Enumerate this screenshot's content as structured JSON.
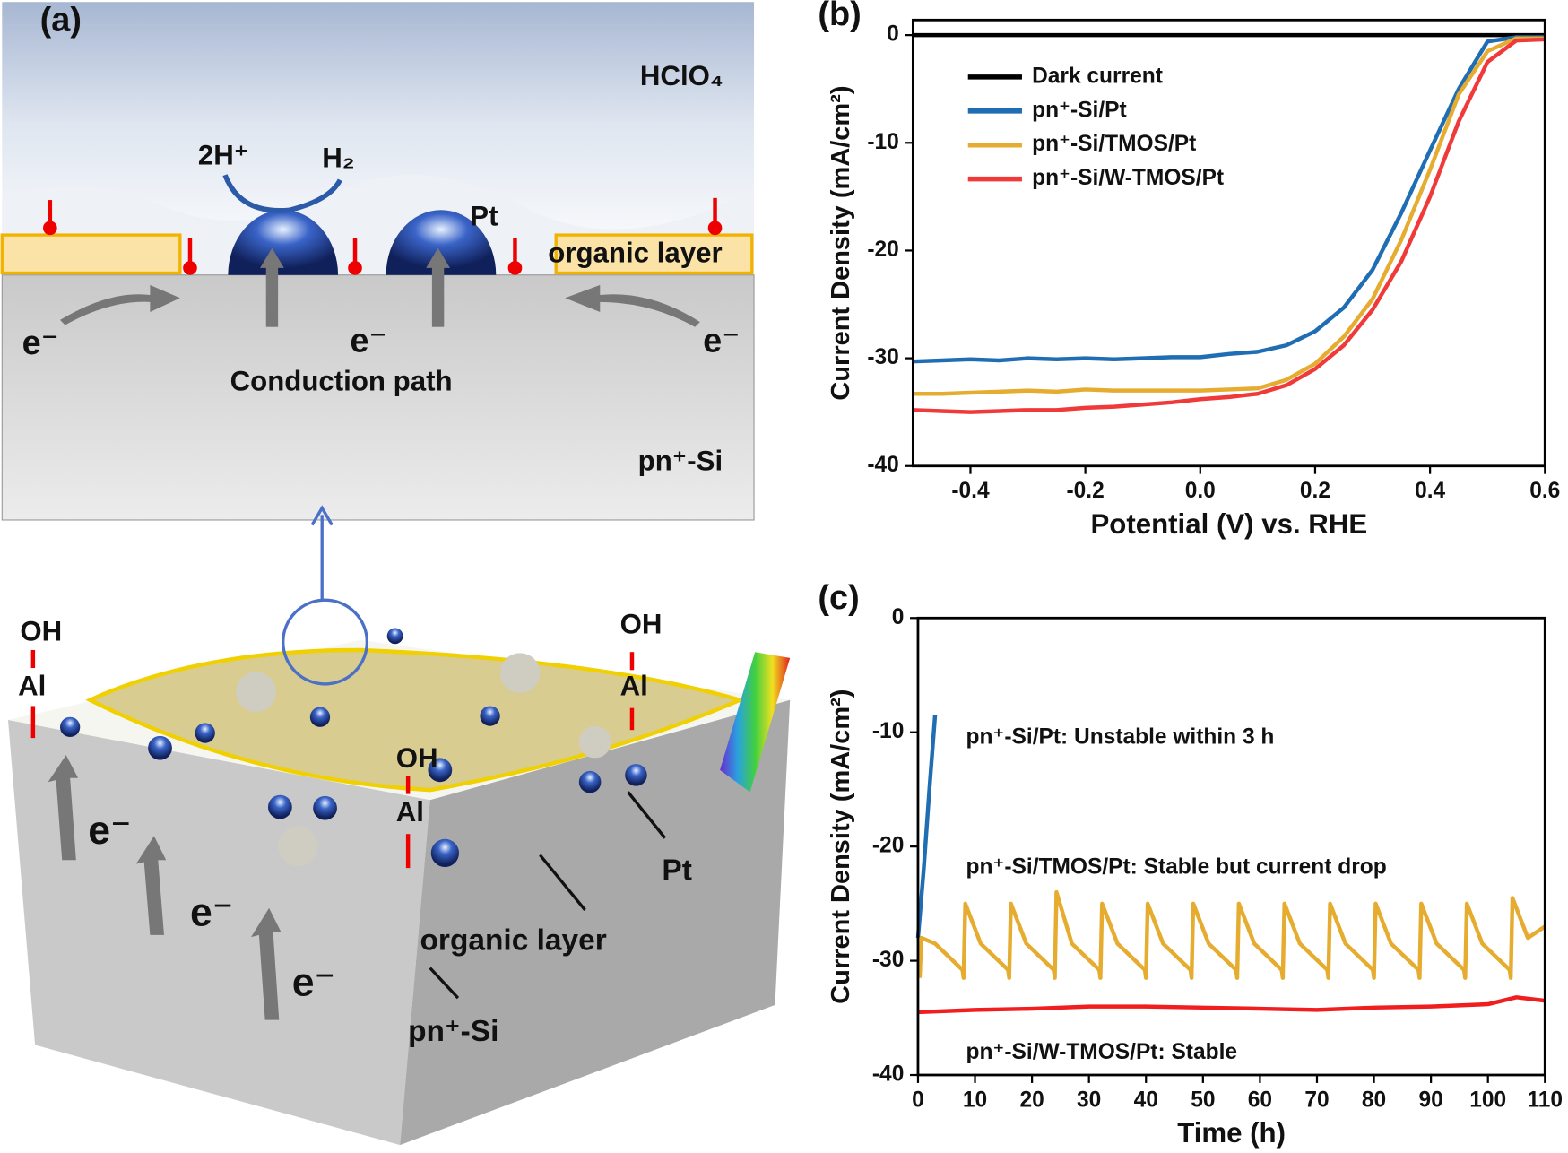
{
  "diagram": {
    "panel_label": "(a)",
    "top_labels": [
      "HClO₄",
      "2H⁺",
      "H₂",
      "Pt",
      "organic layer",
      "e⁻",
      "e⁻",
      "e⁻",
      "Conduction path",
      "pn⁺-Si"
    ],
    "bottom_labels": [
      "OH",
      "Al",
      "OH",
      "Al",
      "OH",
      "Al",
      "e⁻",
      "e⁻",
      "e⁻",
      "Pt",
      "organic layer",
      "pn⁺-Si"
    ]
  },
  "chart_data": [
    {
      "type": "line",
      "panel_label": "(b)",
      "xlabel": "Potential (V) vs. RHE",
      "ylabel": "Current Density (mA/cm²)",
      "xlim": [
        -0.5,
        0.6
      ],
      "ylim": [
        -40,
        1.4
      ],
      "xticks": [
        -0.4,
        -0.2,
        {
          "value": 0,
          "label": "0.0"
        },
        0.2,
        0.4,
        0.6
      ],
      "yticks": [
        0,
        -10,
        -20,
        -30,
        -40
      ],
      "legend": "upper left",
      "x": [
        -0.5,
        -0.45,
        -0.4,
        -0.35,
        -0.3,
        -0.25,
        -0.2,
        -0.15,
        -0.1,
        -0.05,
        0,
        0.05,
        0.1,
        0.15,
        0.2,
        0.25,
        0.3,
        0.35,
        0.4,
        0.45,
        0.5,
        0.55,
        0.6
      ],
      "series": [
        {
          "name": "Dark current",
          "color": "#000000",
          "values": [
            0,
            0,
            0,
            0,
            0,
            0,
            0,
            0,
            0,
            0,
            0,
            0,
            0,
            0,
            0,
            0,
            0,
            0,
            0,
            0,
            0,
            0,
            0
          ]
        },
        {
          "name": "pn⁺-Si/Pt",
          "color": "#1f6db3",
          "values": [
            -30.3,
            -30.2,
            -30.1,
            -30.2,
            -30.0,
            -30.1,
            -30.0,
            -30.1,
            -30.0,
            -29.9,
            -29.9,
            -29.6,
            -29.4,
            -28.8,
            -27.5,
            -25.3,
            -21.8,
            -16.5,
            -10.7,
            -5.0,
            -0.6,
            -0.2,
            -0.2
          ]
        },
        {
          "name": "pn⁺-Si/TMOS/Pt",
          "color": "#e6ac30",
          "values": [
            -33.3,
            -33.3,
            -33.2,
            -33.1,
            -33.0,
            -33.1,
            -32.9,
            -33.0,
            -33.0,
            -33.0,
            -33.0,
            -32.9,
            -32.8,
            -32.0,
            -30.5,
            -28.0,
            -24.5,
            -19.0,
            -12.5,
            -5.5,
            -1.5,
            -0.3,
            -0.3
          ]
        },
        {
          "name": "pn⁺-Si/W-TMOS/Pt",
          "color": "#f03a3a",
          "values": [
            -34.8,
            -34.9,
            -35.0,
            -34.9,
            -34.8,
            -34.8,
            -34.6,
            -34.5,
            -34.3,
            -34.1,
            -33.8,
            -33.6,
            -33.3,
            -32.5,
            -31.0,
            -28.8,
            -25.5,
            -21.0,
            -15.0,
            -8.0,
            -2.5,
            -0.5,
            -0.4
          ]
        }
      ]
    },
    {
      "type": "line",
      "panel_label": "(c)",
      "xlabel": "Time (h)",
      "ylabel": "Current Density (mA/cm²)",
      "xlim": [
        0,
        110
      ],
      "ylim": [
        -40,
        0
      ],
      "xticks": [
        0,
        10,
        20,
        30,
        40,
        50,
        60,
        70,
        80,
        90,
        100,
        110
      ],
      "yticks": [
        0,
        -10,
        -20,
        -30,
        -40
      ],
      "annotations": [
        {
          "text": "pn⁺-Si/Pt: Unstable within 3 h",
          "color": "#1f6db3"
        },
        {
          "text": "pn⁺-Si/TMOS/Pt: Stable but current drop",
          "color": "#e6ac30"
        },
        {
          "text": "pn⁺-Si/W-TMOS/Pt: Stable",
          "color": "#f01e1e"
        }
      ],
      "series": [
        {
          "color": "#1f6db3",
          "x": [
            0,
            1,
            2,
            3
          ],
          "values": [
            -28,
            -22,
            -15,
            -8.5
          ]
        },
        {
          "color": "#e6ac30",
          "x": [
            0.3,
            0.6,
            3,
            7.8,
            8,
            8.3,
            11,
            15.8,
            16,
            16.3,
            19,
            23.8,
            24,
            24.3,
            27,
            31.8,
            32,
            32.3,
            35,
            39.8,
            40,
            40.3,
            43,
            47.8,
            48,
            48.3,
            51,
            55.8,
            56,
            56.3,
            59,
            63.8,
            64,
            64.3,
            67,
            71.8,
            72,
            72.3,
            75,
            79.8,
            80,
            80.3,
            83,
            87.8,
            88,
            88.3,
            91,
            95.8,
            96,
            96.3,
            99,
            103.8,
            104,
            104.3,
            107,
            110
          ],
          "values": [
            -31.5,
            -28,
            -28.5,
            -30.8,
            -31.5,
            -25,
            -28.5,
            -30.8,
            -31.5,
            -25,
            -28.5,
            -30.8,
            -31.5,
            -24,
            -28.5,
            -30.8,
            -31.5,
            -25,
            -28.5,
            -30.8,
            -31.5,
            -25,
            -28.5,
            -30.8,
            -31.5,
            -25,
            -28.5,
            -30.8,
            -31.5,
            -25,
            -28.5,
            -30.8,
            -31.5,
            -25,
            -28.5,
            -30.8,
            -31.5,
            -25,
            -28.5,
            -30.8,
            -31.5,
            -25,
            -28.5,
            -30.8,
            -31.5,
            -25,
            -28.5,
            -30.8,
            -31.5,
            -25,
            -28.5,
            -30.8,
            -31.5,
            -24.5,
            -28,
            -27
          ]
        },
        {
          "color": "#f01e1e",
          "x": [
            0,
            10,
            20,
            30,
            40,
            50,
            60,
            70,
            80,
            90,
            100,
            105,
            110
          ],
          "values": [
            -34.5,
            -34.3,
            -34.2,
            -34,
            -34,
            -34.1,
            -34.2,
            -34.3,
            -34.1,
            -34,
            -33.8,
            -33.2,
            -33.5
          ]
        }
      ]
    }
  ]
}
